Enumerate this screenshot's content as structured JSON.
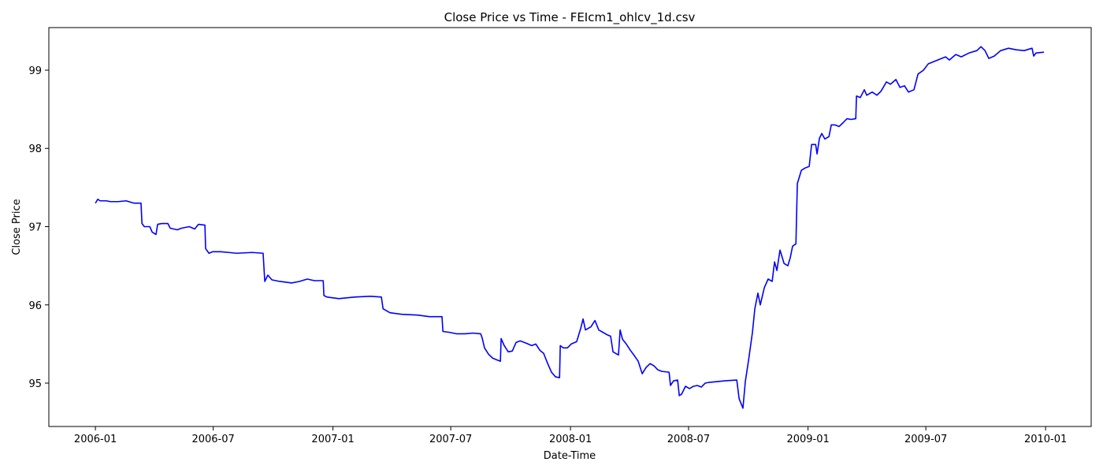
{
  "chart_data": {
    "type": "line",
    "title": "Close Price vs Time - FEIcm1_ohlcv_1d.csv",
    "xlabel": "Date-Time",
    "ylabel": "Close Price",
    "x": [
      2006.0,
      2006.01,
      2006.02,
      2006.03,
      2006.046,
      2006.063,
      2006.096,
      2006.129,
      2006.163,
      2006.192,
      2006.196,
      2006.206,
      2006.229,
      2006.239,
      2006.255,
      2006.262,
      2006.279,
      2006.305,
      2006.315,
      2006.345,
      2006.362,
      2006.395,
      2006.418,
      2006.434,
      2006.461,
      2006.464,
      2006.478,
      2006.494,
      2006.527,
      2006.561,
      2006.594,
      2006.66,
      2006.706,
      2006.713,
      2006.726,
      2006.743,
      2006.776,
      2006.826,
      2006.859,
      2006.892,
      2006.922,
      2006.959,
      2006.962,
      2006.975,
      2007.025,
      2007.091,
      2007.158,
      2007.204,
      2007.211,
      2007.24,
      2007.29,
      2007.357,
      2007.406,
      2007.459,
      2007.463,
      2007.489,
      2007.522,
      2007.556,
      2007.589,
      2007.622,
      2007.628,
      2007.638,
      2007.655,
      2007.672,
      2007.688,
      2007.705,
      2007.708,
      2007.721,
      2007.738,
      2007.755,
      2007.771,
      2007.788,
      2007.814,
      2007.837,
      2007.854,
      2007.871,
      2007.887,
      2007.904,
      2007.92,
      2007.937,
      2007.954,
      2007.957,
      2007.97,
      2007.987,
      2008.003,
      2008.026,
      2008.043,
      2008.053,
      2008.063,
      2008.086,
      2008.103,
      2008.119,
      2008.136,
      2008.153,
      2008.169,
      2008.179,
      2008.202,
      2008.209,
      2008.219,
      2008.235,
      2008.252,
      2008.269,
      2008.285,
      2008.302,
      2008.318,
      2008.335,
      2008.352,
      2008.368,
      2008.385,
      2008.415,
      2008.421,
      2008.434,
      2008.451,
      2008.458,
      2008.468,
      2008.484,
      2008.501,
      2008.518,
      2008.534,
      2008.551,
      2008.567,
      2008.584,
      2008.617,
      2008.65,
      2008.7,
      2008.71,
      2008.726,
      2008.736,
      2008.75,
      2008.766,
      2008.776,
      2008.789,
      2008.799,
      2008.816,
      2008.832,
      2008.849,
      2008.859,
      2008.869,
      2008.882,
      2008.899,
      2008.915,
      2008.925,
      2008.935,
      2008.949,
      2008.955,
      2008.972,
      2008.988,
      2009.005,
      2009.015,
      2009.032,
      2009.038,
      2009.048,
      2009.058,
      2009.071,
      2009.088,
      2009.098,
      2009.114,
      2009.131,
      2009.148,
      2009.164,
      2009.181,
      2009.201,
      2009.204,
      2009.22,
      2009.237,
      2009.247,
      2009.27,
      2009.29,
      2009.307,
      2009.33,
      2009.347,
      2009.37,
      2009.387,
      2009.406,
      2009.423,
      2009.446,
      2009.463,
      2009.486,
      2009.506,
      2009.546,
      2009.579,
      2009.595,
      2009.622,
      2009.645,
      2009.678,
      2009.711,
      2009.728,
      2009.745,
      2009.761,
      2009.784,
      2009.811,
      2009.844,
      2009.877,
      2009.91,
      2009.943,
      2009.95,
      2009.96,
      2009.993
    ],
    "values": [
      97.3,
      97.35,
      97.33,
      97.33,
      97.33,
      97.32,
      97.32,
      97.33,
      97.3,
      97.3,
      97.04,
      97.0,
      97.0,
      96.93,
      96.9,
      97.03,
      97.04,
      97.04,
      96.98,
      96.96,
      96.98,
      97.0,
      96.97,
      97.03,
      97.02,
      96.72,
      96.66,
      96.68,
      96.68,
      96.67,
      96.66,
      96.67,
      96.66,
      96.3,
      96.38,
      96.32,
      96.3,
      96.28,
      96.3,
      96.33,
      96.31,
      96.31,
      96.12,
      96.1,
      96.08,
      96.1,
      96.11,
      96.1,
      95.95,
      95.9,
      95.88,
      95.87,
      95.85,
      95.85,
      95.66,
      95.65,
      95.63,
      95.63,
      95.64,
      95.63,
      95.58,
      95.45,
      95.37,
      95.32,
      95.3,
      95.28,
      95.57,
      95.48,
      95.4,
      95.41,
      95.52,
      95.54,
      95.51,
      95.48,
      95.5,
      95.42,
      95.38,
      95.25,
      95.14,
      95.08,
      95.07,
      95.48,
      95.45,
      95.45,
      95.5,
      95.53,
      95.7,
      95.82,
      95.68,
      95.72,
      95.8,
      95.68,
      95.65,
      95.62,
      95.6,
      95.4,
      95.36,
      95.68,
      95.56,
      95.5,
      95.42,
      95.35,
      95.28,
      95.12,
      95.2,
      95.25,
      95.22,
      95.17,
      95.15,
      95.14,
      94.97,
      95.03,
      95.04,
      94.84,
      94.86,
      94.96,
      94.93,
      94.96,
      94.97,
      94.95,
      95.0,
      95.01,
      95.02,
      95.03,
      95.04,
      94.8,
      94.68,
      95.02,
      95.3,
      95.65,
      95.95,
      96.15,
      96.0,
      96.22,
      96.33,
      96.3,
      96.55,
      96.44,
      96.7,
      96.53,
      96.5,
      96.6,
      96.75,
      96.78,
      97.55,
      97.72,
      97.75,
      97.77,
      98.05,
      98.05,
      97.93,
      98.13,
      98.19,
      98.12,
      98.15,
      98.3,
      98.3,
      98.28,
      98.33,
      98.38,
      98.37,
      98.38,
      98.67,
      98.65,
      98.75,
      98.68,
      98.72,
      98.68,
      98.73,
      98.85,
      98.82,
      98.88,
      98.78,
      98.8,
      98.72,
      98.75,
      98.95,
      99.0,
      99.08,
      99.13,
      99.17,
      99.13,
      99.2,
      99.17,
      99.22,
      99.25,
      99.3,
      99.25,
      99.15,
      99.18,
      99.25,
      99.28,
      99.26,
      99.25,
      99.28,
      99.18,
      99.22,
      99.23
    ],
    "color": "#0000ff",
    "xlim": [
      2005.804,
      2010.192
    ],
    "xticks": [
      {
        "value": 2006.0,
        "label": "2006-01"
      },
      {
        "value": 2006.496,
        "label": "2006-07"
      },
      {
        "value": 2007.0,
        "label": "2007-01"
      },
      {
        "value": 2007.496,
        "label": "2007-07"
      },
      {
        "value": 2008.0,
        "label": "2008-01"
      },
      {
        "value": 2008.497,
        "label": "2008-07"
      },
      {
        "value": 2009.0,
        "label": "2009-01"
      },
      {
        "value": 2009.496,
        "label": "2009-07"
      },
      {
        "value": 2010.0,
        "label": "2010-01"
      }
    ],
    "ylim": [
      94.446,
      99.544
    ],
    "yticks": [
      95,
      96,
      97,
      98,
      99
    ],
    "grid": false
  }
}
